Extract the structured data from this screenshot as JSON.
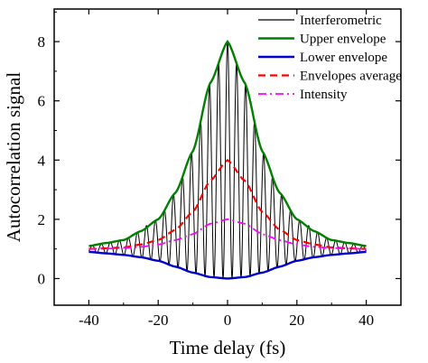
{
  "chart_data": {
    "type": "line",
    "title": "",
    "xlabel": "Time delay (fs)",
    "ylabel": "Autocorrelation signal",
    "xlim": [
      -50,
      50
    ],
    "ylim": [
      -0.9,
      9.1
    ],
    "x_ticks": [
      -40,
      -20,
      0,
      20,
      40
    ],
    "y_ticks": [
      0,
      2,
      4,
      6,
      8
    ],
    "grid": false,
    "legend_position": "top-right",
    "series": [
      {
        "name": "Interferometric",
        "color": "#000000",
        "style": "solid",
        "fringe_period_fs": 2.6,
        "note_values": "oscillates between Lower envelope and Upper envelope",
        "x": [
          -40,
          -30,
          -20,
          -15,
          -10,
          -5,
          0,
          5,
          10,
          15,
          20,
          30,
          40
        ],
        "y_max": [
          1.1,
          1.3,
          2.0,
          2.9,
          4.3,
          6.6,
          8.0,
          6.6,
          4.3,
          2.9,
          2.0,
          1.3,
          1.1
        ],
        "y_min": [
          0.9,
          0.8,
          0.6,
          0.4,
          0.2,
          0.05,
          0.0,
          0.05,
          0.2,
          0.4,
          0.6,
          0.8,
          0.9
        ]
      },
      {
        "name": "Upper envelope",
        "color": "#008000",
        "style": "solid",
        "x": [
          -40,
          -35,
          -30,
          -25,
          -20,
          -15,
          -10,
          -5,
          0,
          5,
          10,
          15,
          20,
          25,
          30,
          35,
          40
        ],
        "values": [
          1.1,
          1.2,
          1.3,
          1.6,
          2.0,
          2.9,
          4.3,
          6.6,
          8.0,
          6.6,
          4.3,
          2.9,
          2.0,
          1.6,
          1.3,
          1.2,
          1.1
        ]
      },
      {
        "name": "Lower envelope",
        "color": "#0000cc",
        "style": "solid",
        "x": [
          -40,
          -35,
          -30,
          -25,
          -20,
          -15,
          -10,
          -5,
          0,
          5,
          10,
          15,
          20,
          25,
          30,
          35,
          40
        ],
        "values": [
          0.9,
          0.85,
          0.8,
          0.72,
          0.6,
          0.4,
          0.2,
          0.05,
          0.0,
          0.05,
          0.2,
          0.4,
          0.6,
          0.72,
          0.8,
          0.85,
          0.9
        ]
      },
      {
        "name": "Envelopes average",
        "color": "#ff0000",
        "style": "dashed",
        "x": [
          -40,
          -35,
          -30,
          -25,
          -20,
          -15,
          -10,
          -5,
          0,
          5,
          10,
          15,
          20,
          25,
          30,
          35,
          40
        ],
        "values": [
          1.0,
          1.02,
          1.05,
          1.15,
          1.3,
          1.65,
          2.25,
          3.3,
          4.0,
          3.3,
          2.25,
          1.65,
          1.3,
          1.15,
          1.05,
          1.02,
          1.0
        ]
      },
      {
        "name": "Intensity",
        "color": "#ff00ff",
        "style": "dash-dot",
        "x": [
          -40,
          -35,
          -30,
          -25,
          -20,
          -15,
          -10,
          -5,
          0,
          5,
          10,
          15,
          20,
          25,
          30,
          35,
          40
        ],
        "values": [
          1.0,
          1.01,
          1.03,
          1.07,
          1.15,
          1.3,
          1.5,
          1.85,
          2.0,
          1.85,
          1.5,
          1.3,
          1.15,
          1.07,
          1.03,
          1.01,
          1.0
        ]
      }
    ]
  }
}
